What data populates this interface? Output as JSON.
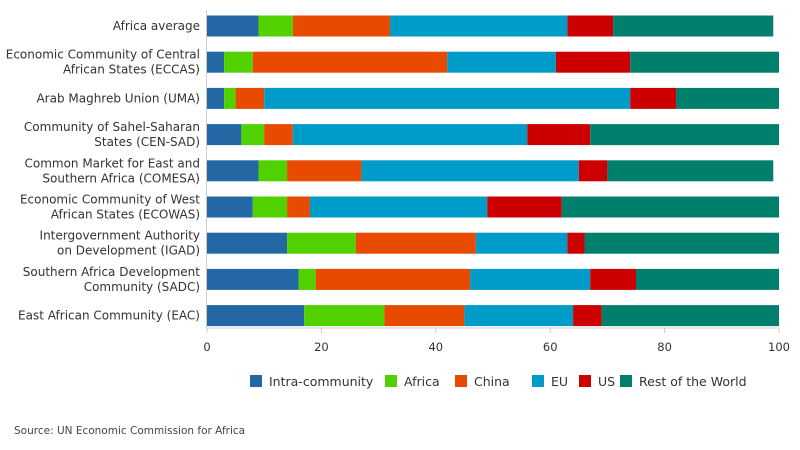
{
  "chart_data": {
    "type": "bar",
    "orientation": "horizontal",
    "stacked": true,
    "title": "",
    "xlabel": "",
    "ylabel": "",
    "xlim": [
      0,
      100
    ],
    "x_ticks": [
      0,
      20,
      40,
      60,
      80,
      100
    ],
    "grid": false,
    "legend_position": "bottom",
    "categories": [
      [
        "Africa average"
      ],
      [
        "Economic Community of Central",
        "African States (ECCAS)"
      ],
      [
        "Arab Maghreb Union (UMA)"
      ],
      [
        "Community of Sahel-Saharan",
        "States (CEN-SAD)"
      ],
      [
        "Common Market for East and",
        "Southern Africa (COMESA)"
      ],
      [
        "Economic Community of West",
        "African States (ECOWAS)"
      ],
      [
        "Intergovernment Authority",
        "on Development (IGAD)"
      ],
      [
        "Southern Africa Development",
        "Community (SADC)"
      ],
      [
        "East African Community (EAC)"
      ]
    ],
    "series": [
      {
        "name": "Intra-community",
        "color": "#2368a5",
        "values": [
          9,
          3,
          3,
          6,
          9,
          8,
          14,
          16,
          17
        ]
      },
      {
        "name": "Africa",
        "color": "#52d100",
        "values": [
          6,
          5,
          2,
          4,
          5,
          6,
          12,
          3,
          14
        ]
      },
      {
        "name": "China",
        "color": "#e84a00",
        "values": [
          17,
          34,
          5,
          5,
          13,
          4,
          21,
          27,
          14
        ]
      },
      {
        "name": "EU",
        "color": "#009cc9",
        "values": [
          31,
          19,
          64,
          41,
          38,
          31,
          16,
          21,
          19
        ]
      },
      {
        "name": "US",
        "color": "#cc0000",
        "values": [
          8,
          13,
          8,
          11,
          5,
          13,
          3,
          8,
          5
        ]
      },
      {
        "name": "Rest of the World",
        "color": "#007f6d",
        "values": [
          28,
          26,
          18,
          33,
          29,
          38,
          34,
          25,
          31
        ]
      }
    ]
  },
  "source": "Source: UN Economic Commission for Africa"
}
